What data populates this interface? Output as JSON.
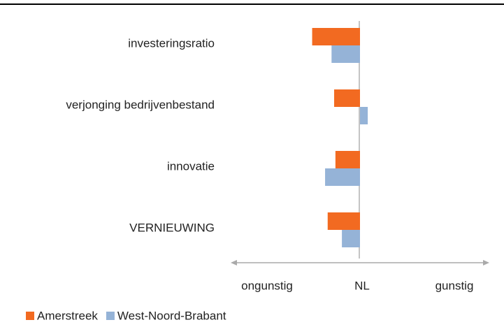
{
  "chart_data": {
    "type": "barh",
    "categories": [
      "investeringsratio",
      "verjonging bedrijvenbestand",
      "innovatie",
      "VERNIEUWING"
    ],
    "series": [
      {
        "name": "Amerstreek",
        "color": "#f26a21",
        "values": [
          -0.37,
          -0.2,
          -0.19,
          -0.25
        ]
      },
      {
        "name": "West-Noord-Brabant",
        "color": "#95b3d7",
        "values": [
          -0.22,
          0.06,
          -0.27,
          -0.14
        ]
      }
    ],
    "xlim": [
      -1,
      1
    ],
    "x_axis_labels": {
      "left": "ongunstig",
      "center": "NL",
      "right": "gunstig"
    },
    "legend": "bottom-left"
  }
}
